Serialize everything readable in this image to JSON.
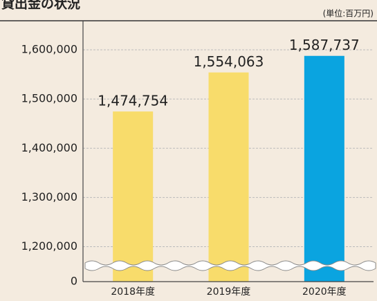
{
  "chart_data": {
    "type": "bar",
    "title": "貸出金の状況",
    "subtitle": "(単位:百万円)",
    "categories": [
      "2018年度",
      "2019年度",
      "2020年度"
    ],
    "values": [
      1474754,
      1554063,
      1587737
    ],
    "value_labels": [
      "1,474,754",
      "1,554,063",
      "1,587,737"
    ],
    "colors": [
      "#f8dc6b",
      "#f8dc6b",
      "#0aa4e0"
    ],
    "ylim": [
      0,
      1620000
    ],
    "axis_break": [
      0,
      1160000
    ],
    "yticks": [
      0,
      {
        "value": 1200000,
        "label": "1,200,000"
      },
      {
        "value": 1300000,
        "label": "1,300,000"
      },
      {
        "value": 1400000,
        "label": "1,400,000"
      },
      {
        "value": 1500000,
        "label": "1,500,000"
      },
      {
        "value": 1600000,
        "label": "1,600,000"
      }
    ],
    "grid": true
  }
}
